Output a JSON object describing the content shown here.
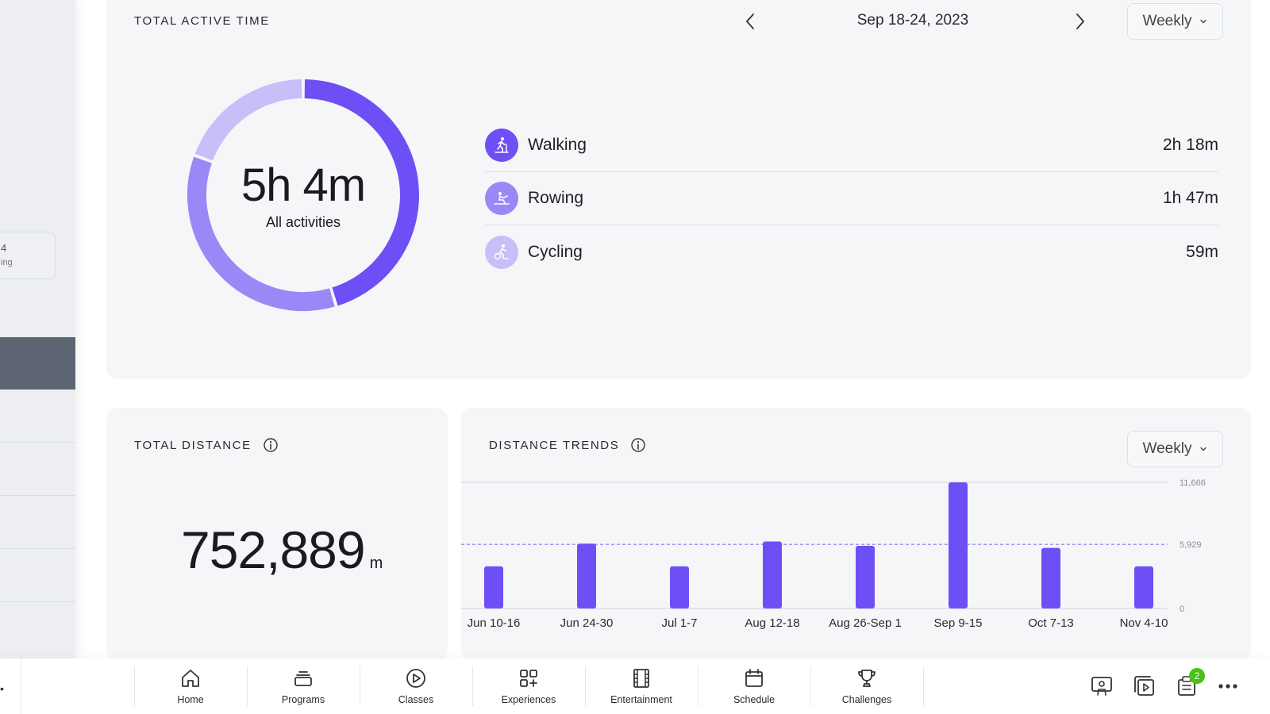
{
  "colors": {
    "accent": "#6e4ff5",
    "accent_mid": "#9c87f7",
    "accent_light": "#c9bff8",
    "card_bg": "#f5f6f8",
    "badge_green": "#48c21a"
  },
  "sidebar": {
    "stat_value": "4",
    "stat_label": "ing"
  },
  "active_time": {
    "title": "TOTAL ACTIVE TIME",
    "date_range": "Sep 18-24, 2023",
    "period": "Weekly",
    "total": "5h 4m",
    "total_label": "All activities",
    "activities": [
      {
        "name": "Walking",
        "value": "2h 18m",
        "minutes": 138,
        "icon": "treadmill-walking-icon",
        "color": "#6e4ff5"
      },
      {
        "name": "Rowing",
        "value": "1h 47m",
        "minutes": 107,
        "icon": "rowing-icon",
        "color": "#9c87f7"
      },
      {
        "name": "Cycling",
        "value": "59m",
        "minutes": 59,
        "icon": "cycling-icon",
        "color": "#c9bff8"
      }
    ]
  },
  "distance": {
    "title": "TOTAL DISTANCE",
    "value": "752,889",
    "unit": "m"
  },
  "trends": {
    "title": "DISTANCE TRENDS",
    "period": "Weekly"
  },
  "chart_data": {
    "type": "bar",
    "categories": [
      "Jun 10-16",
      "Jun 24-30",
      "Jul 1-7",
      "Aug 12-18",
      "Aug 26-Sep 1",
      "Sep 9-15",
      "Oct 7-13",
      "Nov 4-10"
    ],
    "values": [
      3900,
      6000,
      3900,
      6200,
      5800,
      11666,
      5600,
      3900
    ],
    "ylim": [
      0,
      11666
    ],
    "yticks": [
      "0",
      "5,929",
      "11,666"
    ],
    "ytick_values": [
      0,
      5929,
      11666
    ],
    "average_line": 5929,
    "color": "#6e4ff5"
  },
  "bottom_nav": {
    "tabs": [
      {
        "label": "Home",
        "icon": "home-icon"
      },
      {
        "label": "Programs",
        "icon": "programs-icon"
      },
      {
        "label": "Classes",
        "icon": "play-circle-icon"
      },
      {
        "label": "Experiences",
        "icon": "experiences-grid-icon"
      },
      {
        "label": "Entertainment",
        "icon": "film-icon"
      },
      {
        "label": "Schedule",
        "icon": "calendar-icon"
      },
      {
        "label": "Challenges",
        "icon": "trophy-icon"
      }
    ],
    "notification_count": "2"
  }
}
